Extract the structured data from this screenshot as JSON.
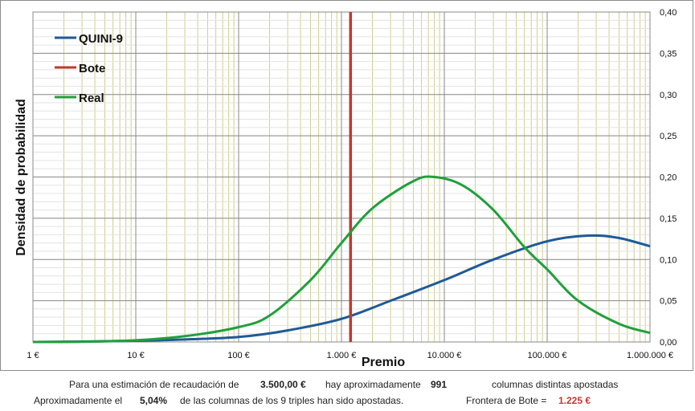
{
  "chart_data": {
    "type": "line",
    "xscale": "log",
    "xlim": [
      1,
      1000000
    ],
    "ylim": [
      0,
      0.4
    ],
    "xlabel": "Premio",
    "ylabel": "Densidad de probabilidad",
    "x_ticks": [
      1,
      10,
      100,
      1000,
      10000,
      100000,
      1000000
    ],
    "x_tick_labels": [
      "1 €",
      "10 €",
      "100 €",
      "1.000 €",
      "10.000 €",
      "100.000 €",
      "1.000.000 €"
    ],
    "y_ticks": [
      0,
      0.05,
      0.1,
      0.15,
      0.2,
      0.25,
      0.3,
      0.35,
      0.4
    ],
    "y_tick_labels": [
      "0,00",
      "0,05",
      "0,10",
      "0,15",
      "0,20",
      "0,25",
      "0,30",
      "0,35",
      "0,40"
    ],
    "grid": true,
    "legend_position": "top-left",
    "series": [
      {
        "name": "QUINI-9",
        "color": "#1f5a96",
        "x": [
          1,
          3,
          10,
          30,
          100,
          300,
          1000,
          3000,
          10000,
          30000,
          100000,
          250000,
          500000,
          1000000
        ],
        "y": [
          0.0,
          0.0005,
          0.0015,
          0.003,
          0.006,
          0.014,
          0.028,
          0.05,
          0.075,
          0.1,
          0.122,
          0.129,
          0.126,
          0.116
        ]
      },
      {
        "name": "Bote",
        "color": "#c0392b",
        "vertical_line_x": 1225
      },
      {
        "name": "Real",
        "color": "#20a03a",
        "x": [
          1,
          3,
          10,
          30,
          100,
          200,
          500,
          1000,
          2000,
          5000,
          8000,
          15000,
          30000,
          60000,
          100000,
          200000,
          500000,
          1000000
        ],
        "y": [
          0.0,
          0.0003,
          0.002,
          0.007,
          0.018,
          0.032,
          0.075,
          0.12,
          0.162,
          0.195,
          0.2,
          0.19,
          0.16,
          0.115,
          0.088,
          0.05,
          0.022,
          0.011
        ]
      }
    ]
  },
  "footer": {
    "line1": {
      "prefix": "Para  una estimación de recaudación de",
      "recaudacion": "3.500,00 €",
      "middle": "hay aproximadamente",
      "columnas": "991",
      "suffix": "columnas distintas apostadas"
    },
    "line2": {
      "prefix": "Aproximadamente el",
      "percent": "5,04%",
      "middle": "de las columnas de los 9 triples han sido apostadas.",
      "frontera_label": "Frontera de Bote =",
      "frontera_value": "1.225 €"
    }
  }
}
